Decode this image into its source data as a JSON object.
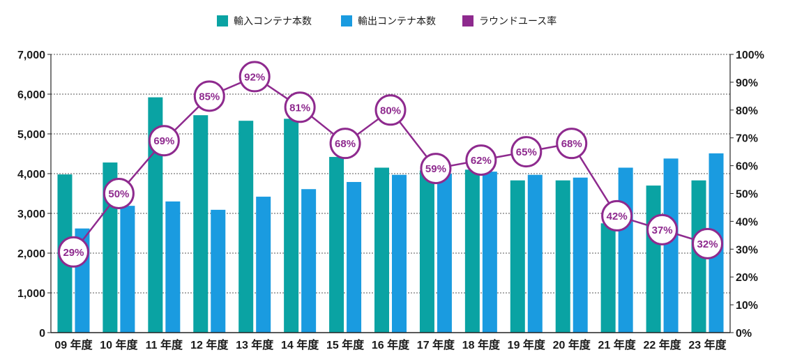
{
  "chart_data": {
    "type": "bar",
    "categories": [
      "09 年度",
      "10 年度",
      "11 年度",
      "12 年度",
      "13 年度",
      "14 年度",
      "15 年度",
      "16 年度",
      "17 年度",
      "18 年度",
      "19 年度",
      "20 年度",
      "21 年度",
      "22 年度",
      "23 年度"
    ],
    "series": [
      {
        "name": "輸入コンテナ本数",
        "type": "bar",
        "axis": "left",
        "color": "#0aa3a3",
        "values": [
          3980,
          4280,
          5920,
          5470,
          5330,
          5380,
          4420,
          4150,
          4080,
          4100,
          3830,
          3830,
          2750,
          3700,
          3830
        ]
      },
      {
        "name": "輸出コンテナ本数",
        "type": "bar",
        "axis": "left",
        "color": "#1a9be0",
        "values": [
          2620,
          3190,
          3300,
          3090,
          3420,
          3610,
          3790,
          3970,
          4000,
          4050,
          3970,
          3900,
          4150,
          4380,
          4510
        ]
      },
      {
        "name": "ラウンドユース率",
        "type": "line",
        "axis": "right",
        "color": "#8e2a8e",
        "values": [
          29,
          50,
          69,
          85,
          92,
          81,
          68,
          80,
          59,
          62,
          65,
          68,
          42,
          37,
          32
        ],
        "labels": [
          "29%",
          "50%",
          "69%",
          "85%",
          "92%",
          "81%",
          "68%",
          "80%",
          "59%",
          "62%",
          "65%",
          "68%",
          "42%",
          "37%",
          "32%"
        ]
      }
    ],
    "left_axis": {
      "ylim": [
        0,
        7000
      ],
      "ticks": [
        "0",
        "1,000",
        "2,000",
        "3,000",
        "4,000",
        "5,000",
        "6,000",
        "7,000"
      ]
    },
    "right_axis": {
      "ylim": [
        0,
        100
      ],
      "ticks": [
        "0%",
        "10%",
        "20%",
        "30%",
        "40%",
        "50%",
        "60%",
        "70%",
        "80%",
        "90%",
        "100%"
      ]
    },
    "grid": true,
    "legend": "top-center",
    "title": "",
    "xlabel": "",
    "ylabel": ""
  }
}
